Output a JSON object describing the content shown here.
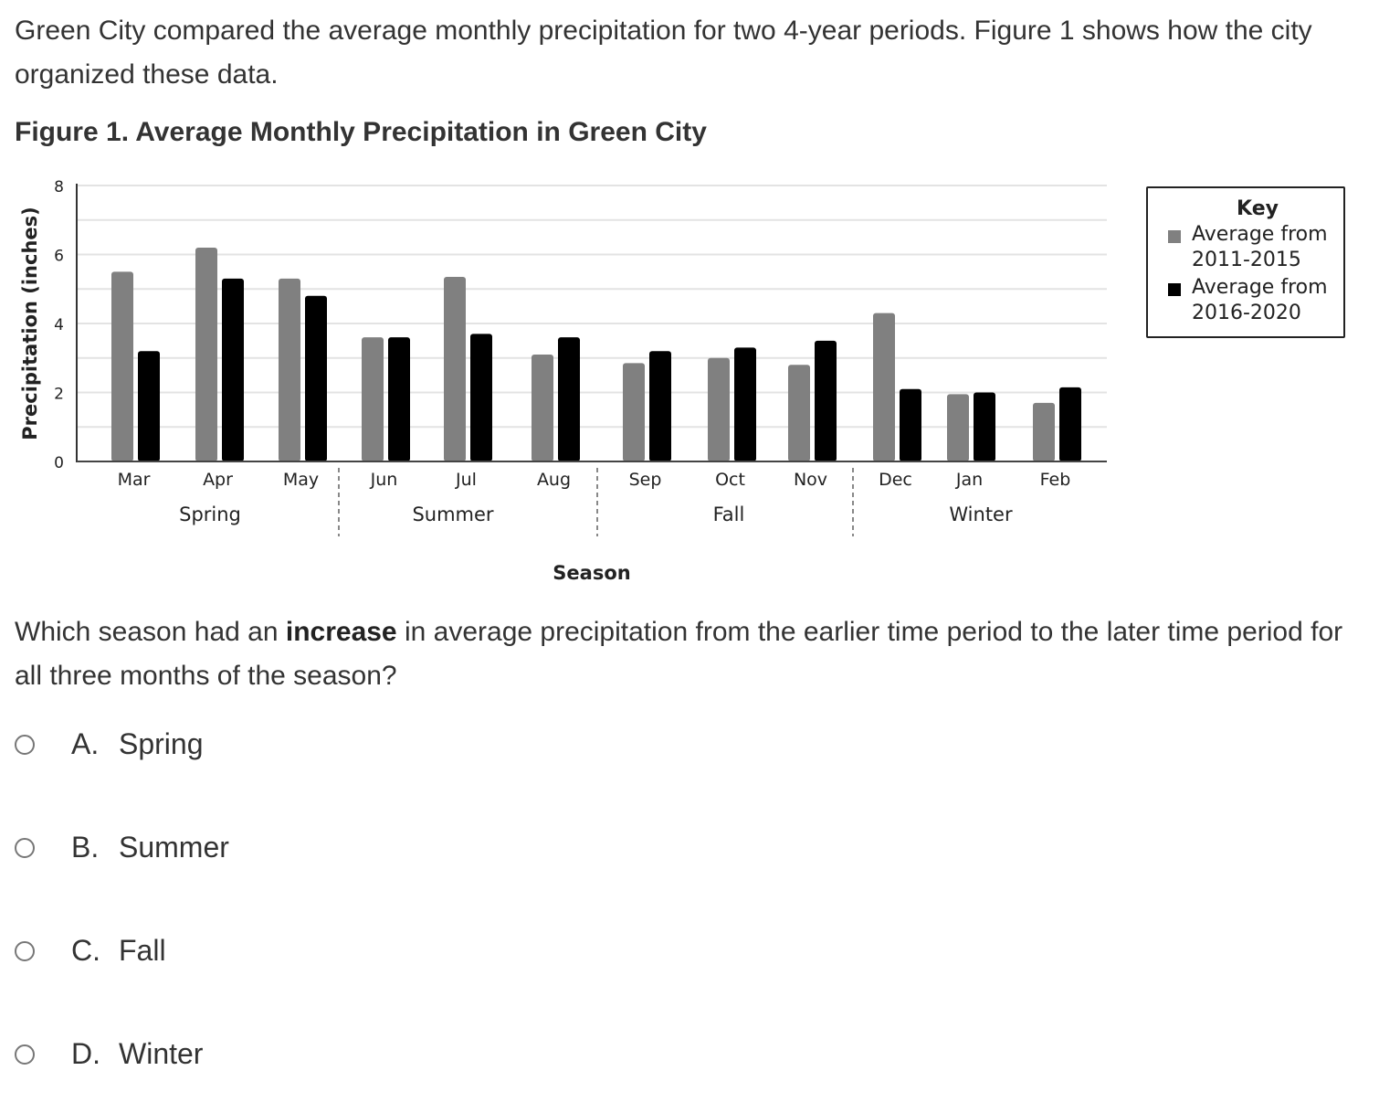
{
  "intro": {
    "text": "Green City compared the average monthly precipitation for two 4-year periods. Figure 1 shows how the city organized these data."
  },
  "figure": {
    "title": "Figure 1. Average Monthly Precipitation in Green City"
  },
  "chart_data": {
    "type": "bar",
    "title": "Figure 1. Average Monthly Precipitation in Green City",
    "xlabel": "Season",
    "ylabel": "Precipitation (inches)",
    "ylim": [
      0,
      8
    ],
    "yticks": [
      "0",
      "2",
      "4",
      "6",
      "8"
    ],
    "grid": true,
    "categories": [
      "Mar",
      "Apr",
      "May",
      "Jun",
      "Jul",
      "Aug",
      "Sep",
      "Oct",
      "Nov",
      "Dec",
      "Jan",
      "Feb"
    ],
    "groups": [
      {
        "label": "Spring",
        "months": [
          "Mar",
          "Apr",
          "May"
        ]
      },
      {
        "label": "Summer",
        "months": [
          "Jun",
          "Jul",
          "Aug"
        ]
      },
      {
        "label": "Fall",
        "months": [
          "Sep",
          "Oct",
          "Nov"
        ]
      },
      {
        "label": "Winter",
        "months": [
          "Dec",
          "Jan",
          "Feb"
        ]
      }
    ],
    "series": [
      {
        "name": "Average from 2011-2015",
        "color": "#808080",
        "values": [
          5.5,
          6.2,
          5.3,
          3.6,
          5.35,
          3.1,
          2.85,
          3.0,
          2.8,
          4.3,
          1.95,
          1.7
        ]
      },
      {
        "name": "Average from 2016-2020",
        "color": "#000000",
        "values": [
          3.2,
          5.3,
          4.8,
          3.6,
          3.7,
          3.6,
          3.2,
          3.3,
          3.5,
          2.1,
          2.0,
          2.15
        ]
      }
    ],
    "legend": {
      "title": "Key",
      "placement": "right"
    }
  },
  "legend": {
    "title": "Key",
    "items": [
      {
        "label1": "Average from",
        "label2": "2011-2015",
        "color": "#808080"
      },
      {
        "label1": "Average from",
        "label2": "2016-2020",
        "color": "#000000"
      }
    ]
  },
  "question": {
    "prefix": "Which season had an ",
    "emphasis": "increase",
    "suffix": " in average precipitation from the earlier time period to the later time period for all three months of the season?"
  },
  "choices": [
    {
      "letter": "A.",
      "text": "Spring"
    },
    {
      "letter": "B.",
      "text": "Summer"
    },
    {
      "letter": "C.",
      "text": "Fall"
    },
    {
      "letter": "D.",
      "text": "Winter"
    }
  ]
}
